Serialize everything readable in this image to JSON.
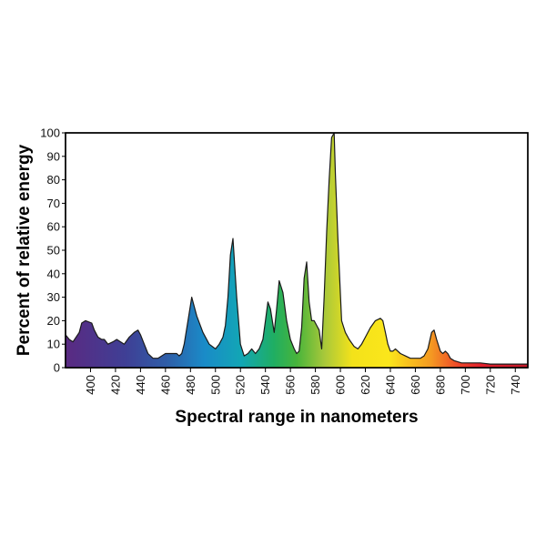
{
  "chart_data": {
    "type": "area",
    "title": "",
    "xlabel": "Spectral range in nanometers",
    "ylabel": "Percent of relative energy",
    "xlim": [
      380,
      750
    ],
    "ylim": [
      0,
      100
    ],
    "x_ticks": [
      400,
      420,
      440,
      460,
      480,
      500,
      520,
      540,
      560,
      580,
      600,
      620,
      640,
      660,
      680,
      700,
      720,
      740
    ],
    "y_ticks": [
      0,
      10,
      20,
      30,
      40,
      50,
      60,
      70,
      80,
      90,
      100
    ],
    "grid": false,
    "fill": "visible-spectrum color gradient",
    "series": [
      {
        "x": [
          380,
          383,
          386,
          391,
          393,
          396,
          401,
          403,
          406,
          409,
          411,
          414,
          418,
          421,
          424,
          427,
          431,
          435,
          438,
          440,
          443,
          446,
          450,
          454,
          457,
          460,
          464,
          467,
          469,
          471,
          473,
          475,
          478,
          481,
          485,
          490,
          495,
          500,
          503,
          506,
          508,
          510,
          512,
          514,
          517,
          520,
          523,
          526,
          529,
          532,
          535,
          538,
          540,
          542,
          544,
          547,
          549,
          551,
          554,
          557,
          560,
          563,
          565,
          567,
          569,
          571,
          573,
          575,
          577,
          579,
          581,
          583,
          585,
          587,
          589,
          591,
          593,
          595,
          596,
          598,
          601,
          604,
          607,
          611,
          614,
          617,
          620,
          624,
          628,
          632,
          634,
          636,
          638,
          640,
          642,
          644,
          648,
          652,
          656,
          660,
          664,
          667,
          670,
          673,
          675,
          677,
          680,
          682,
          684,
          686,
          688,
          691,
          694,
          697,
          700,
          705,
          712,
          720,
          730,
          740,
          750
        ],
        "values": [
          14,
          12,
          11,
          15,
          19,
          20,
          19,
          16,
          13,
          12,
          12,
          10,
          11,
          12,
          11,
          10,
          13,
          15,
          16,
          14,
          10,
          6,
          4,
          4,
          5,
          6,
          6,
          6,
          6,
          5,
          6,
          10,
          20,
          30,
          22,
          15,
          10,
          8,
          10,
          13,
          18,
          30,
          48,
          55,
          30,
          10,
          5,
          6,
          8,
          6,
          8,
          12,
          20,
          28,
          25,
          15,
          25,
          37,
          32,
          20,
          12,
          8,
          6,
          7,
          17,
          38,
          45,
          28,
          20,
          20,
          18,
          16,
          8,
          30,
          58,
          80,
          98,
          100,
          82,
          55,
          20,
          15,
          12,
          9,
          8,
          10,
          13,
          17,
          20,
          21,
          20,
          15,
          10,
          7,
          7,
          8,
          6,
          5,
          4,
          4,
          4,
          5,
          8,
          15,
          16,
          12,
          7,
          6,
          7,
          6,
          4,
          3,
          2.5,
          2,
          2,
          2,
          2,
          1.5,
          1.5,
          1.5,
          1.5
        ]
      }
    ]
  }
}
